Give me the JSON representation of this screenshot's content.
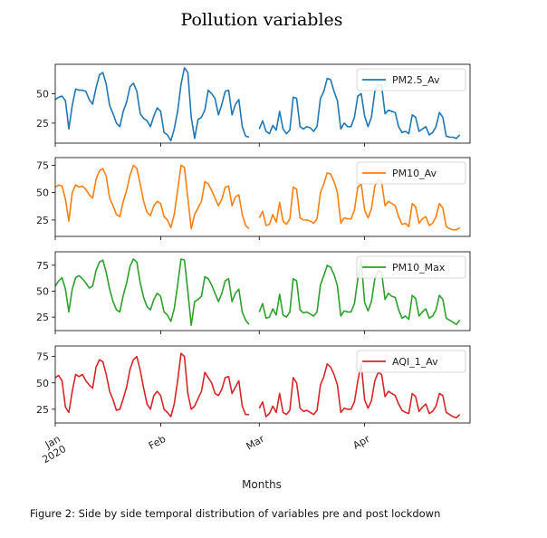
{
  "chart_data": {
    "type": "line",
    "title": "Pollution variables",
    "xlabel": "Months",
    "caption": "Figure 2: Side by side temporal distribution of variables pre and post lockdown",
    "x_ticks": [
      "Jan\n2020",
      "Feb",
      "Mar",
      "Apr"
    ],
    "x_range_days": [
      0,
      122
    ],
    "x_tick_days": [
      0,
      31,
      60,
      91
    ],
    "panels": [
      {
        "name": "PM2.5_Av",
        "color": "#1f77b4",
        "ylim": [
          8,
          75
        ],
        "yticks": [
          25,
          50
        ],
        "segments": [
          {
            "start_day": 0,
            "values": [
              45,
              47,
              48,
              44,
              20,
              40,
              54,
              53,
              53,
              52,
              45,
              41,
              55,
              66,
              68,
              58,
              40,
              33,
              25,
              22,
              35,
              43,
              56,
              59,
              52,
              33,
              29,
              27,
              22,
              31,
              38,
              35,
              17,
              15,
              10,
              20,
              35,
              58,
              72,
              68,
              30,
              12,
              28,
              30,
              36,
              53,
              50,
              46,
              32,
              41,
              52,
              53,
              32,
              41,
              45,
              22,
              14,
              13
            ]
          },
          {
            "start_day": 60,
            "values": [
              20,
              27,
              18,
              16,
              23,
              19,
              35,
              20,
              16,
              19,
              47,
              46,
              22,
              20,
              22,
              21,
              18,
              22,
              46,
              52,
              63,
              62,
              52,
              44,
              20,
              25,
              22,
              22,
              30,
              48,
              50,
              31,
              22,
              30,
              52,
              58,
              57,
              33,
              36,
              35,
              34,
              22,
              17,
              18,
              16,
              32,
              30,
              18,
              20,
              22,
              15,
              17,
              22,
              34,
              30,
              14,
              13,
              13,
              12,
              15
            ]
          }
        ]
      },
      {
        "name": "PM10_Av",
        "color": "#ff7f0e",
        "ylim": [
          10,
          82
        ],
        "yticks": [
          25,
          50,
          75
        ],
        "segments": [
          {
            "start_day": 0,
            "values": [
              55,
              57,
              56,
              44,
              24,
              50,
              57,
              55,
              56,
              53,
              48,
              45,
              62,
              70,
              72,
              65,
              45,
              38,
              30,
              28,
              42,
              52,
              66,
              75,
              72,
              58,
              42,
              32,
              29,
              38,
              42,
              40,
              28,
              25,
              18,
              30,
              52,
              75,
              73,
              45,
              17,
              30,
              36,
              42,
              60,
              58,
              52,
              45,
              38,
              44,
              55,
              56,
              38,
              46,
              48,
              30,
              20,
              17
            ]
          },
          {
            "start_day": 60,
            "values": [
              27,
              33,
              20,
              21,
              30,
              23,
              41,
              24,
              21,
              26,
              55,
              53,
              27,
              25,
              25,
              24,
              22,
              26,
              50,
              58,
              68,
              67,
              60,
              50,
              22,
              27,
              26,
              26,
              34,
              55,
              58,
              34,
              27,
              35,
              56,
              62,
              60,
              38,
              42,
              40,
              38,
              28,
              21,
              22,
              19,
              40,
              37,
              22,
              26,
              28,
              20,
              22,
              28,
              40,
              36,
              19,
              17,
              16,
              16,
              18
            ]
          }
        ]
      },
      {
        "name": "PM10_Max",
        "color": "#2ca02c",
        "ylim": [
          12,
          88
        ],
        "yticks": [
          25,
          50,
          75
        ],
        "segments": [
          {
            "start_day": 0,
            "values": [
              55,
              60,
              63,
              52,
              30,
              52,
              63,
              65,
              62,
              58,
              53,
              55,
              70,
              78,
              80,
              68,
              52,
              40,
              32,
              30,
              46,
              58,
              74,
              81,
              78,
              58,
              44,
              35,
              32,
              42,
              48,
              45,
              30,
              27,
              21,
              33,
              56,
              81,
              80,
              50,
              17,
              40,
              42,
              45,
              64,
              62,
              56,
              48,
              40,
              48,
              60,
              62,
              40,
              48,
              52,
              30,
              22,
              18
            ]
          },
          {
            "start_day": 60,
            "values": [
              30,
              38,
              24,
              25,
              33,
              27,
              47,
              27,
              25,
              30,
              62,
              60,
              32,
              29,
              30,
              28,
              26,
              30,
              56,
              65,
              75,
              73,
              66,
              55,
              26,
              31,
              30,
              30,
              38,
              62,
              80,
              39,
              31,
              40,
              62,
              70,
              68,
              42,
              48,
              45,
              44,
              32,
              24,
              26,
              23,
              46,
              43,
              26,
              30,
              33,
              24,
              26,
              32,
              46,
              42,
              24,
              22,
              20,
              18,
              22
            ]
          }
        ]
      },
      {
        "name": "AQI_1_Av",
        "color": "#d62728",
        "ylim": [
          12,
          85
        ],
        "yticks": [
          25,
          50,
          75
        ],
        "segments": [
          {
            "start_day": 0,
            "values": [
              55,
              57,
              52,
              27,
              22,
              42,
              58,
              56,
              58,
              52,
              48,
              45,
              65,
              72,
              70,
              58,
              42,
              34,
              24,
              25,
              35,
              46,
              63,
              72,
              75,
              62,
              45,
              30,
              25,
              38,
              42,
              38,
              25,
              22,
              18,
              30,
              52,
              78,
              75,
              40,
              25,
              28,
              35,
              42,
              60,
              55,
              50,
              40,
              38,
              44,
              55,
              56,
              40,
              46,
              52,
              28,
              20,
              20
            ]
          },
          {
            "start_day": 60,
            "values": [
              26,
              32,
              18,
              21,
              28,
              22,
              40,
              22,
              20,
              24,
              55,
              50,
              26,
              23,
              24,
              22,
              20,
              24,
              48,
              56,
              68,
              65,
              58,
              48,
              22,
              26,
              25,
              25,
              32,
              52,
              68,
              34,
              26,
              33,
              52,
              60,
              58,
              37,
              42,
              40,
              38,
              30,
              24,
              22,
              21,
              40,
              37,
              23,
              27,
              30,
              21,
              23,
              28,
              40,
              38,
              22,
              20,
              18,
              17,
              20
            ]
          }
        ]
      }
    ]
  }
}
